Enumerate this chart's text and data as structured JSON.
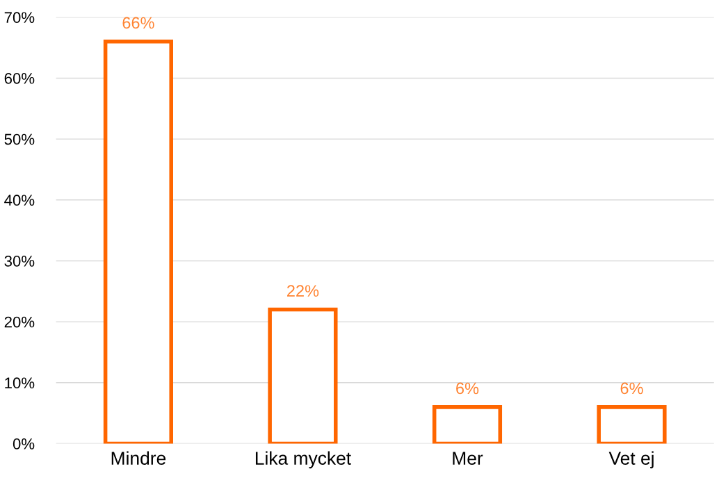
{
  "chart_data": {
    "type": "bar",
    "categories": [
      "Mindre",
      "Lika mycket",
      "Mer",
      "Vet ej"
    ],
    "values": [
      66,
      22,
      6,
      6
    ],
    "value_labels": [
      "66%",
      "22%",
      "6%",
      "6%"
    ],
    "color": "#ff6600",
    "ylim": [
      0,
      70
    ],
    "yticks": [
      {
        "value": 0,
        "label": "0%"
      },
      {
        "value": 10,
        "label": "10%"
      },
      {
        "value": 20,
        "label": "20%"
      },
      {
        "value": 30,
        "label": "30%"
      },
      {
        "value": 40,
        "label": "40%"
      },
      {
        "value": 50,
        "label": "50%"
      },
      {
        "value": 60,
        "label": "60%"
      },
      {
        "value": 70,
        "label": "70%"
      }
    ],
    "grid": "y"
  }
}
